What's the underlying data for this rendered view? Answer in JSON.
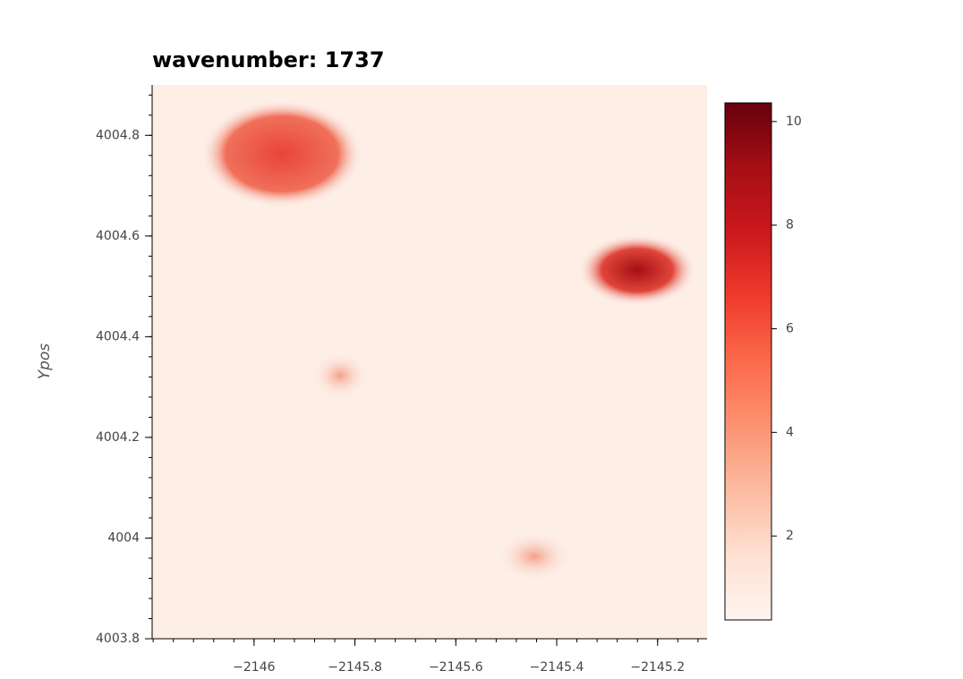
{
  "chart_data": {
    "type": "heatmap",
    "title": "wavenumber: 1737",
    "ylabel": "Ypos",
    "xlim": [
      -2146.202,
      -2145.102
    ],
    "xticks": [
      {
        "value": -2146,
        "label": "−2146"
      },
      {
        "value": -2145.8,
        "label": "−2145.8"
      },
      {
        "value": -2145.6,
        "label": "−2145.6"
      },
      {
        "value": -2145.4,
        "label": "−2145.4"
      },
      {
        "value": -2145.2,
        "label": "−2145.2"
      }
    ],
    "ylim": [
      4003.8,
      4004.9
    ],
    "yticks": [
      4003.8,
      4004,
      4004.2,
      4004.4,
      4004.6,
      4004.8
    ],
    "colorbar": {
      "clim": [
        0.38,
        10.36
      ],
      "ticks": [
        2,
        4,
        6,
        8,
        10
      ],
      "colors": [
        "#fff5f0",
        "#fee0d2",
        "#fcbba1",
        "#fc9272",
        "#fb6a4a",
        "#ef3b2c",
        "#cb181d",
        "#a50f15",
        "#67000d"
      ]
    }
  }
}
